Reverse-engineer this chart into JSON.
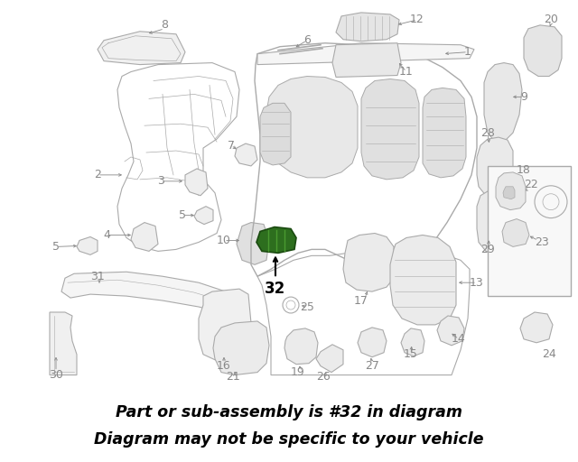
{
  "background_color": "#ffffff",
  "banner_color": "#2d6e1e",
  "banner_text_line1": "Part or sub-assembly is #32 in diagram",
  "banner_text_line2": "Diagram may not be specific to your vehicle",
  "banner_text_color": "#000000",
  "banner_font_size": 12.5,
  "label_color": "#888888",
  "label_fontsize": 9,
  "arrow_color": "#888888",
  "part32_green": "#2d6e1e",
  "part32_green_light": "#4a9a30",
  "gray_line": "#aaaaaa",
  "gray_fill": "#e8e8e8",
  "diagram_border": "#cccccc"
}
